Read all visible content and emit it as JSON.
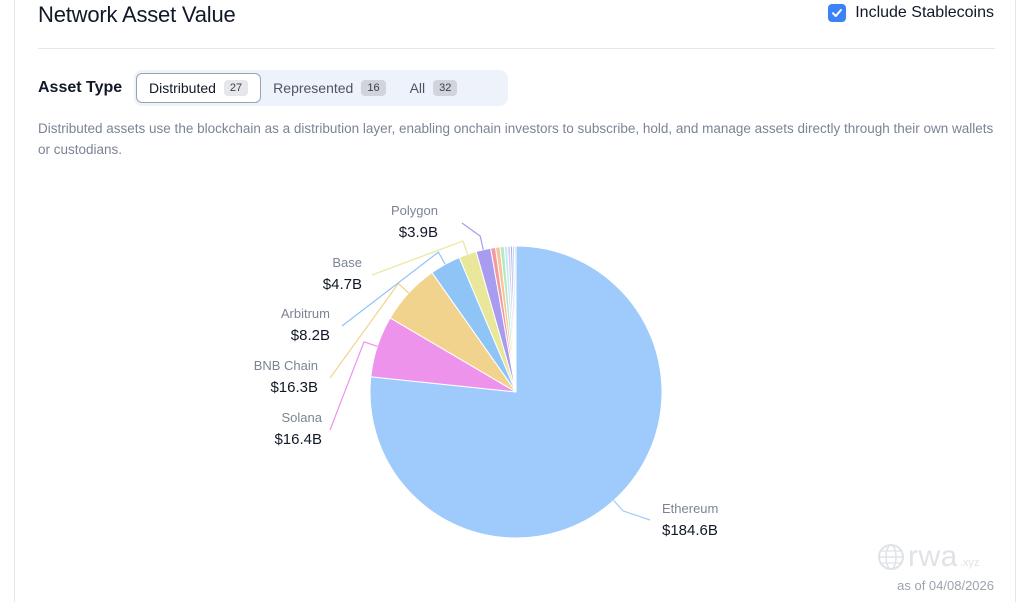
{
  "header": {
    "title": "Network Asset Value",
    "stablecoins_label": "Include Stablecoins",
    "stablecoins_checked": true
  },
  "filter": {
    "label": "Asset Type",
    "options": [
      {
        "label": "Distributed",
        "count": "27",
        "active": true
      },
      {
        "label": "Represented",
        "count": "16",
        "active": false
      },
      {
        "label": "All",
        "count": "32",
        "active": false
      }
    ]
  },
  "description": "Distributed assets use the blockchain as a distribution layer, enabling onchain investors to subscribe, hold, and manage assets directly through their own wallets or custodians.",
  "chart_data": {
    "type": "pie",
    "unit": "B USD",
    "slices": [
      {
        "name": "Ethereum",
        "value": 184.6,
        "label": "$184.6B",
        "color": "#9ecbfb"
      },
      {
        "name": "Solana",
        "value": 16.4,
        "label": "$16.4B",
        "color": "#ee93ec"
      },
      {
        "name": "BNB Chain",
        "value": 16.3,
        "label": "$16.3B",
        "color": "#f2d38e"
      },
      {
        "name": "Arbitrum",
        "value": 8.2,
        "label": "$8.2B",
        "color": "#8fc4f6"
      },
      {
        "name": "Base",
        "value": 4.7,
        "label": "$4.7B",
        "color": "#e8e79a"
      },
      {
        "name": "Polygon",
        "value": 3.9,
        "label": "$3.9B",
        "color": "#a79cf0"
      },
      {
        "name": "",
        "value": 1.3,
        "label": "",
        "color": "#f39aa0"
      },
      {
        "name": "",
        "value": 1.2,
        "label": "",
        "color": "#f5c49a"
      },
      {
        "name": "",
        "value": 1.1,
        "label": "",
        "color": "#b6e7c7"
      },
      {
        "name": "",
        "value": 0.9,
        "label": "",
        "color": "#c7ecf0"
      },
      {
        "name": "",
        "value": 0.7,
        "label": "",
        "color": "#d8c7f0"
      },
      {
        "name": "",
        "value": 0.6,
        "label": "",
        "color": "#a6b3f3"
      },
      {
        "name": "",
        "value": 0.5,
        "label": "",
        "color": "#b3d0f7"
      },
      {
        "name": "",
        "value": 0.4,
        "label": "",
        "color": "#cfd6e0"
      }
    ]
  },
  "footer": {
    "watermark": "rwa",
    "watermark_suffix": ".xyz",
    "as_of": "as of 04/08/2026"
  }
}
